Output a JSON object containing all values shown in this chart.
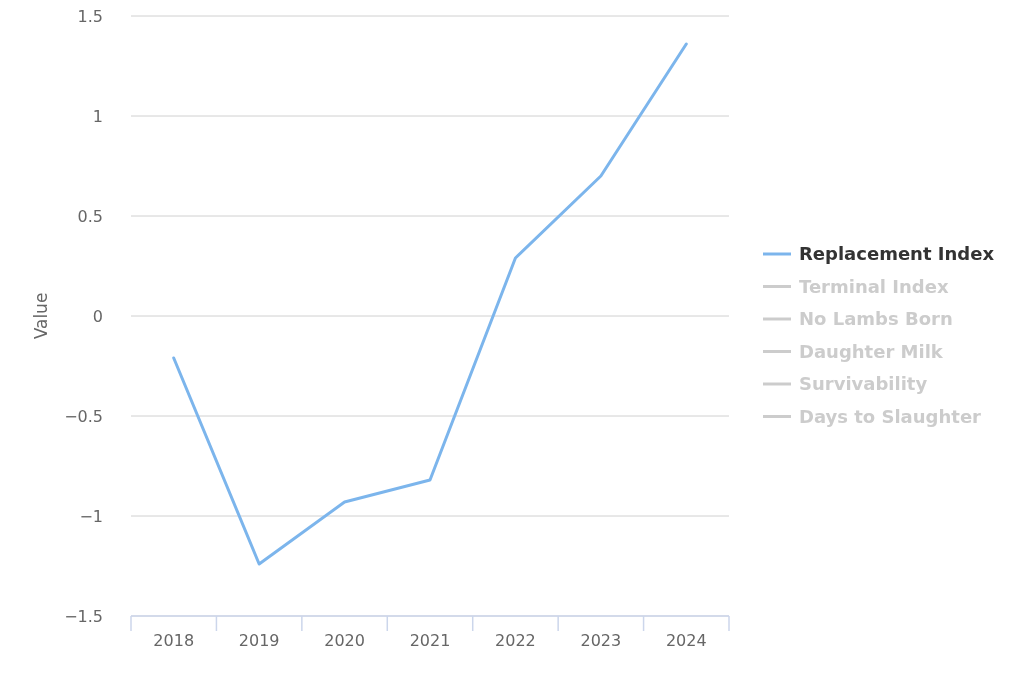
{
  "chart_data": {
    "type": "line",
    "ylabel": "Value",
    "categories": [
      "2018",
      "2019",
      "2020",
      "2021",
      "2022",
      "2023",
      "2024"
    ],
    "series": [
      {
        "name": "Replacement Index",
        "color": "#7cb5ec",
        "values": [
          -0.21,
          -1.24,
          -0.93,
          -0.82,
          0.29,
          0.7,
          1.36
        ]
      },
      {
        "name": "Terminal Index",
        "color": "#cccccc",
        "values": [
          null,
          null,
          null,
          null,
          null,
          null,
          null
        ]
      },
      {
        "name": "No Lambs Born",
        "color": "#cccccc",
        "values": [
          null,
          null,
          null,
          null,
          null,
          null,
          null
        ]
      },
      {
        "name": "Daughter Milk",
        "color": "#cccccc",
        "values": [
          null,
          null,
          null,
          null,
          null,
          null,
          null
        ]
      },
      {
        "name": "Survivability",
        "color": "#cccccc",
        "values": [
          null,
          null,
          null,
          null,
          null,
          null,
          null
        ]
      },
      {
        "name": "Days to Slaughter",
        "color": "#cccccc",
        "values": [
          null,
          null,
          null,
          null,
          null,
          null,
          null
        ]
      }
    ],
    "ylim": [
      -1.5,
      1.5
    ],
    "yticks": [
      {
        "value": -1.5,
        "label": "−1.5"
      },
      {
        "value": -1,
        "label": "−1"
      },
      {
        "value": -0.5,
        "label": "−0.5"
      },
      0,
      0.5,
      1,
      1.5
    ],
    "grid": "y",
    "legend": "right",
    "marker": "none",
    "line_style": "solid"
  }
}
